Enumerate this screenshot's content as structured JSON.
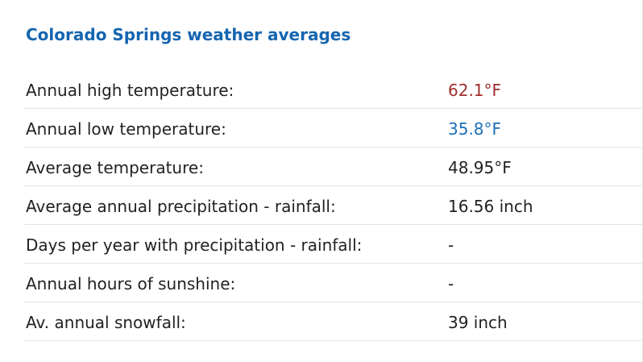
{
  "title": "Colorado Springs weather averages",
  "colors": {
    "title": "#1565b0",
    "high": "#a02d2d",
    "low": "#1c6fb7",
    "text": "#222222",
    "divider": "#e3e3e3"
  },
  "rows": [
    {
      "label": "Annual high temperature:",
      "value": "62.1°F"
    },
    {
      "label": "Annual low temperature:",
      "value": "35.8°F"
    },
    {
      "label": "Average temperature:",
      "value": "48.95°F"
    },
    {
      "label": "Average annual precipitation - rainfall:",
      "value": "16.56 inch"
    },
    {
      "label": "Days per year with precipitation - rainfall:",
      "value": "-"
    },
    {
      "label": "Annual hours of sunshine:",
      "value": "-"
    },
    {
      "label": "Av. annual snowfall:",
      "value": "39 inch"
    }
  ]
}
